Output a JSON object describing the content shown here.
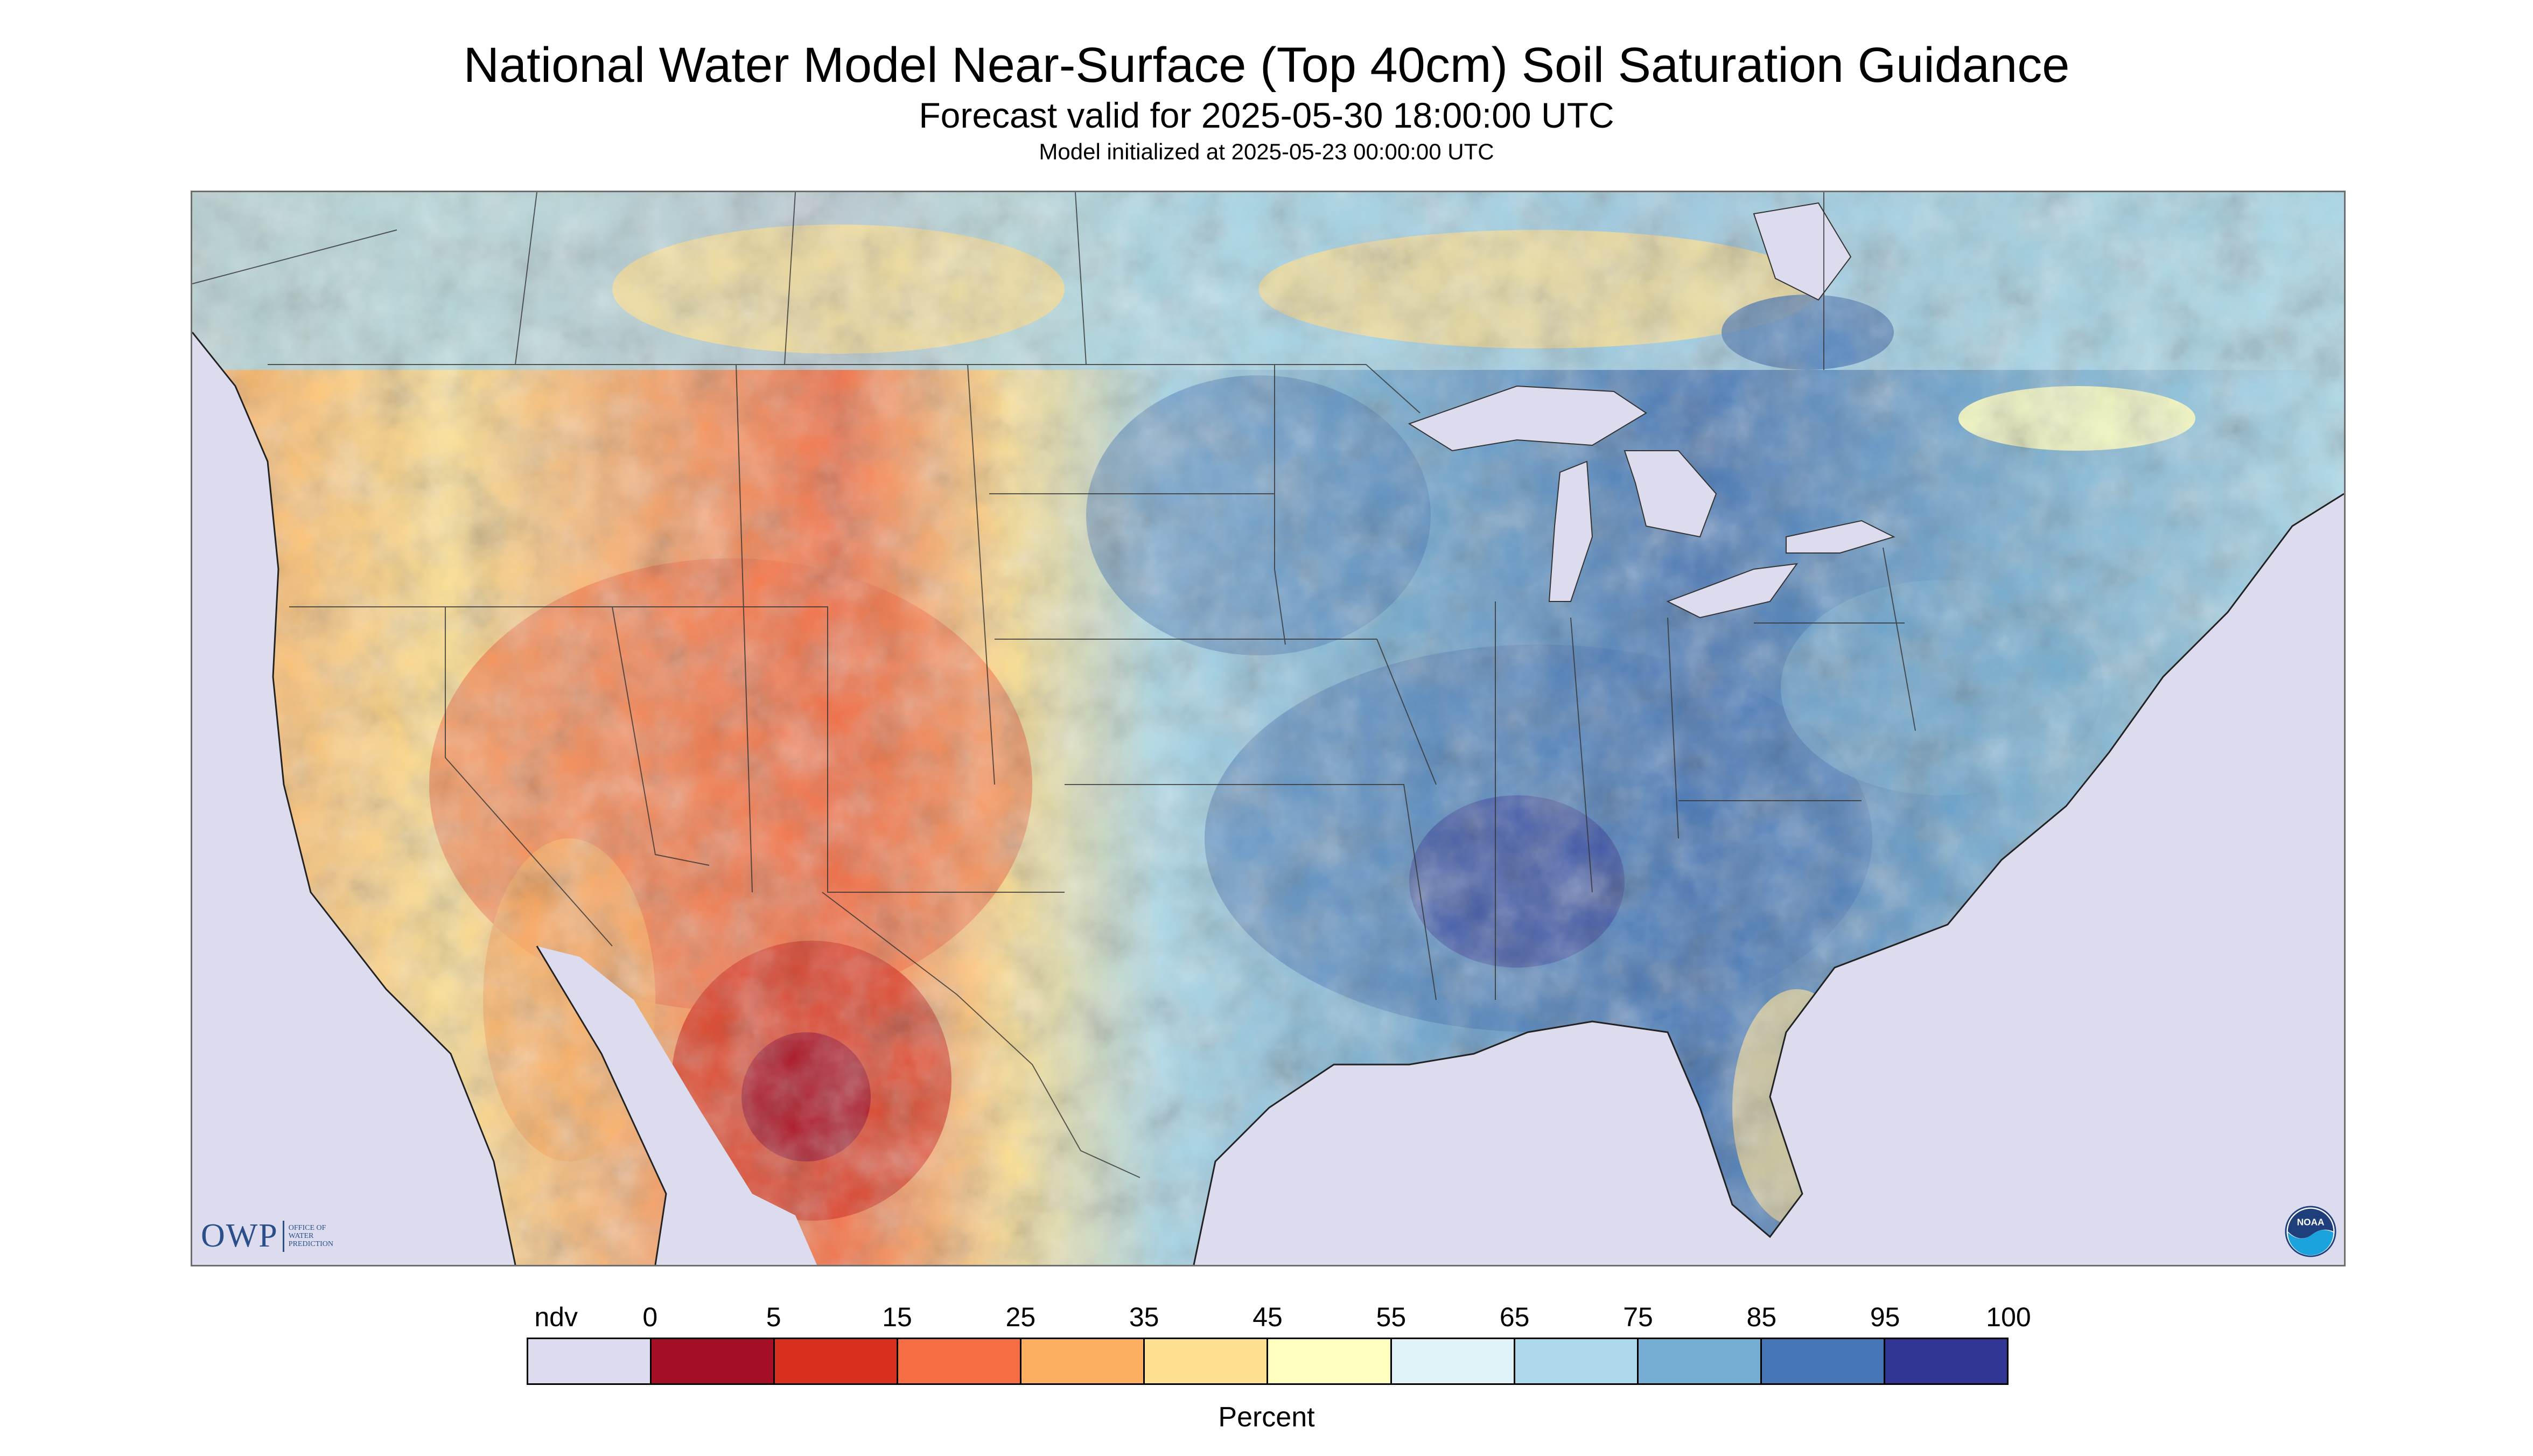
{
  "title": "National Water Model Near-Surface (Top 40cm) Soil Saturation Guidance",
  "subtitle": "Forecast valid for 2025-05-30 18:00:00 UTC",
  "init_text": "Model initialized at 2025-05-23 00:00:00 UTC",
  "logos": {
    "owp_abbrev": "OWP",
    "owp_full": "OFFICE OF WATER PREDICTION",
    "noaa": "NOAA"
  },
  "legend": {
    "title": "Percent",
    "labels": [
      "ndv",
      "0",
      "5",
      "15",
      "25",
      "35",
      "45",
      "55",
      "65",
      "75",
      "85",
      "95",
      "100"
    ],
    "colors": [
      "#dcdcee",
      "#a50f26",
      "#d7301f",
      "#f46d43",
      "#fdae61",
      "#fee090",
      "#ffffbf",
      "#e0f3f8",
      "#abd9e9",
      "#74add1",
      "#4575b4",
      "#313695"
    ]
  },
  "colors": {
    "no_data": "#dcdcee",
    "water": "#dcdcee",
    "border_lines": "#333333"
  }
}
